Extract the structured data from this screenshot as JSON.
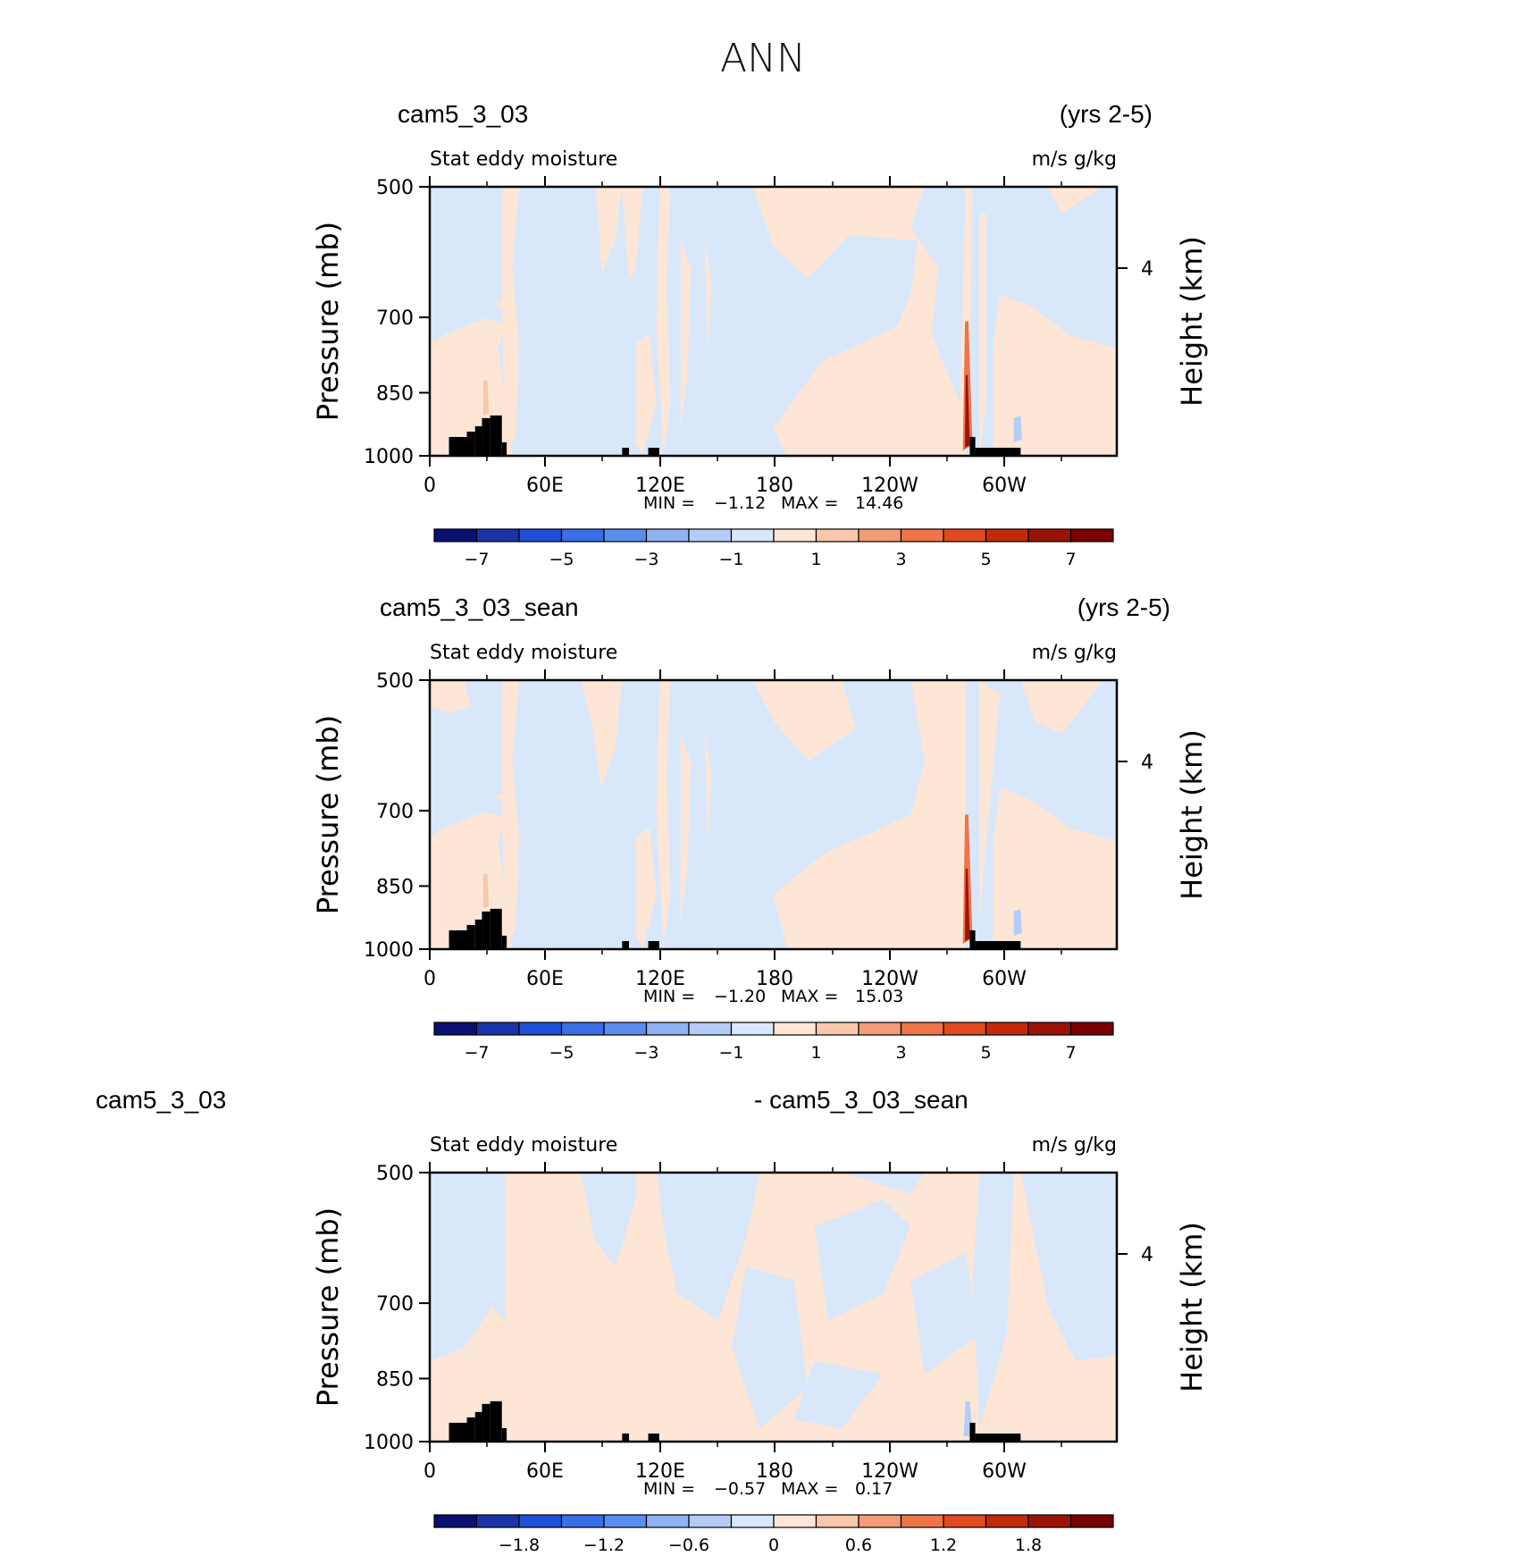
{
  "title": "ANN",
  "colors": {
    "palette": [
      "#0a1070",
      "#1a34a8",
      "#1f4fd6",
      "#3a6ee6",
      "#5b8def",
      "#8fb2f2",
      "#b5cdf6",
      "#d8e8fa",
      "#fde6d6",
      "#f9c7ab",
      "#f39c77",
      "#ee744a",
      "#e04a20",
      "#c22a0c",
      "#9a1406",
      "#7a0000"
    ],
    "land": "#000000",
    "frame": "#000000"
  },
  "chart_data": [
    {
      "type": "heatmap",
      "title": "Stat eddy moisture",
      "case_left": "cam5_3_03",
      "case_right": "(yrs 2-5)",
      "units": "m/s g/kg",
      "xlabel": "",
      "ylabel": "Pressure (mb)",
      "ylabel_right": "Height (km)",
      "x_ticks": [
        "0",
        "60E",
        "120E",
        "180",
        "120W",
        "60W"
      ],
      "y_ticks": [
        "500",
        "700",
        "850",
        "1000"
      ],
      "y_right_ticks": [
        "4"
      ],
      "ylim": [
        1000,
        500
      ],
      "stats": {
        "min_label": "MIN =",
        "min": "-1.12",
        "max_label": "MAX =",
        "max": "14.46"
      },
      "colorbar": {
        "levels": [
          -7,
          -6,
          -5,
          -4,
          -3,
          -2,
          -1,
          0,
          1,
          2,
          3,
          4,
          5,
          6,
          7
        ],
        "labels": [
          "-7",
          "-5",
          "-3",
          "-1",
          "1",
          "3",
          "5",
          "7"
        ]
      }
    },
    {
      "type": "heatmap",
      "title": "Stat eddy moisture",
      "case_left": "cam5_3_03_sean",
      "case_right": "(yrs 2-5)",
      "units": "m/s g/kg",
      "xlabel": "",
      "ylabel": "Pressure (mb)",
      "ylabel_right": "Height (km)",
      "x_ticks": [
        "0",
        "60E",
        "120E",
        "180",
        "120W",
        "60W"
      ],
      "y_ticks": [
        "500",
        "700",
        "850",
        "1000"
      ],
      "y_right_ticks": [
        "4"
      ],
      "ylim": [
        1000,
        500
      ],
      "stats": {
        "min_label": "MIN =",
        "min": "-1.20",
        "max_label": "MAX =",
        "max": "15.03"
      },
      "colorbar": {
        "levels": [
          -7,
          -6,
          -5,
          -4,
          -3,
          -2,
          -1,
          0,
          1,
          2,
          3,
          4,
          5,
          6,
          7
        ],
        "labels": [
          "-7",
          "-5",
          "-3",
          "-1",
          "1",
          "3",
          "5",
          "7"
        ]
      }
    },
    {
      "type": "heatmap",
      "title": "Stat eddy moisture",
      "case_left": "cam5_3_03",
      "case_right": "- cam5_3_03_sean",
      "units": "m/s g/kg",
      "xlabel": "",
      "ylabel": "Pressure (mb)",
      "ylabel_right": "Height (km)",
      "x_ticks": [
        "0",
        "60E",
        "120E",
        "180",
        "120W",
        "60W"
      ],
      "y_ticks": [
        "500",
        "700",
        "850",
        "1000"
      ],
      "y_right_ticks": [
        "4"
      ],
      "ylim": [
        1000,
        500
      ],
      "stats": {
        "min_label": "MIN =",
        "min": "-0.57",
        "max_label": "MAX =",
        "max": "0.17"
      },
      "colorbar": {
        "levels": [
          -2.1,
          -1.8,
          -1.5,
          -1.2,
          -0.9,
          -0.6,
          -0.3,
          0,
          0.3,
          0.6,
          0.9,
          1.2,
          1.5,
          1.8,
          2.1
        ],
        "labels": [
          "-1.8",
          "-1.2",
          "-0.6",
          "0",
          "0.6",
          "1.2",
          "1.8"
        ]
      }
    }
  ]
}
